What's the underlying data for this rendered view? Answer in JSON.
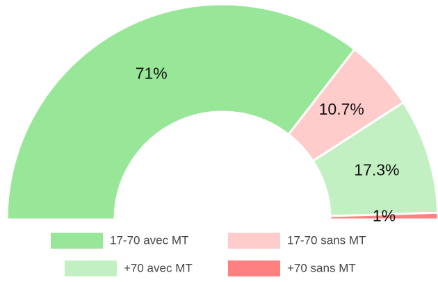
{
  "chart_data": {
    "type": "pie",
    "categories": [
      "17-70 avec MT",
      "17-70 sans MT",
      "+70 avec MT",
      "+70 sans MT"
    ],
    "values": [
      71,
      10.7,
      17.3,
      1
    ],
    "value_labels": [
      "71%",
      "10.7%",
      "17.3%",
      "1%"
    ],
    "colors": [
      "#98e698",
      "#ffcccc",
      "#c2f0c2",
      "#ff8080"
    ]
  }
}
